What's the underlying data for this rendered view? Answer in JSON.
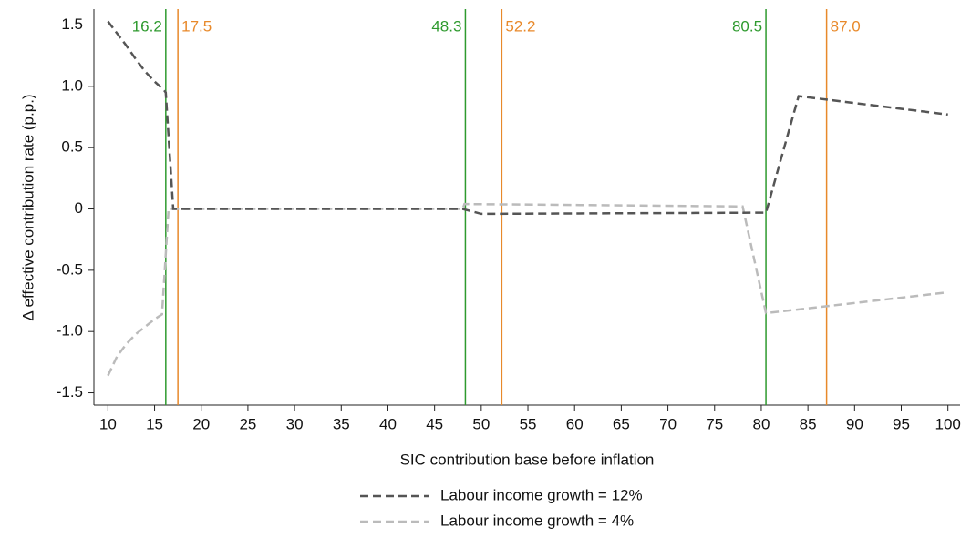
{
  "chart_data": {
    "type": "line",
    "x_label": "SIC contribution base before inflation",
    "y_label": "Δ effective contribution rate (p.p.)",
    "xlim": [
      8.5,
      101.3
    ],
    "ylim": [
      -1.6,
      1.63
    ],
    "xticks": [
      10,
      15,
      20,
      25,
      30,
      35,
      40,
      45,
      50,
      55,
      60,
      65,
      70,
      75,
      80,
      85,
      90,
      95,
      100
    ],
    "yticks": [
      {
        "value": 1.5,
        "label": "1.5"
      },
      {
        "value": 1,
        "label": "1.0"
      },
      0.5,
      0,
      -0.5,
      {
        "value": -1,
        "label": "-1.0"
      },
      -1.5
    ],
    "vlines": [
      {
        "value": 16.2,
        "color": "#2e9a2e"
      },
      {
        "value": 17.5,
        "color": "#e8892a"
      },
      {
        "value": 48.3,
        "color": "#2e9a2e"
      },
      {
        "value": 52.2,
        "color": "#e8892a"
      },
      {
        "value": 80.5,
        "color": "#2e9a2e"
      },
      {
        "value": 87,
        "label": "87.0",
        "color": "#e8892a"
      }
    ],
    "series": [
      {
        "name": "Labour income growth = 12%",
        "color": "#555555",
        "x": [
          10,
          11,
          12,
          13,
          14,
          15,
          16,
          16.2,
          17,
          48,
          50,
          80.5,
          84,
          100
        ],
        "values": [
          1.53,
          1.43,
          1.33,
          1.22,
          1.12,
          1.04,
          0.97,
          0.95,
          0,
          0,
          -0.04,
          -0.03,
          0.92,
          0.77
        ]
      },
      {
        "name": "Labour income growth = 4%",
        "color": "#bbbbbb",
        "x": [
          10,
          11,
          12,
          13,
          14,
          15,
          15.8,
          16.5,
          48,
          48.2,
          78,
          80.5,
          100
        ],
        "values": [
          -1.36,
          -1.2,
          -1.1,
          -1.02,
          -0.96,
          -0.9,
          -0.86,
          0,
          0,
          0.04,
          0.02,
          -0.85,
          -0.68
        ]
      }
    ]
  }
}
